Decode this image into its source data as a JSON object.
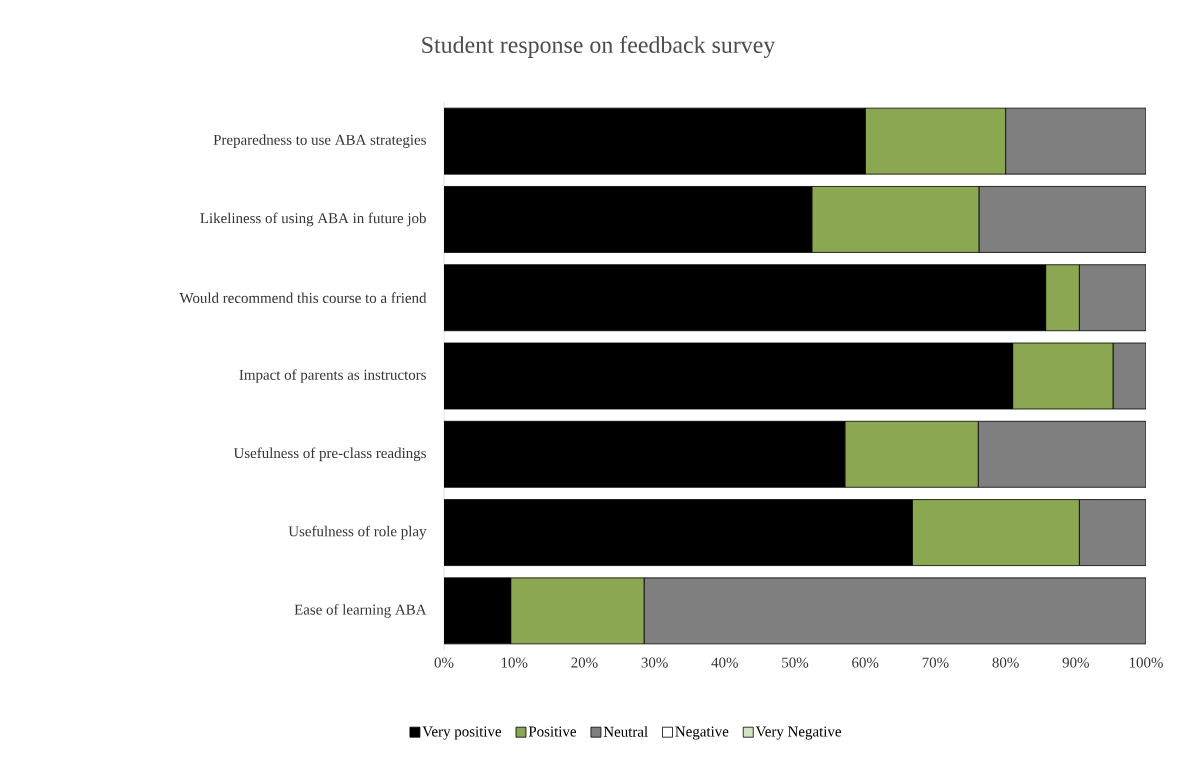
{
  "chart_data": {
    "type": "bar",
    "orientation": "horizontal",
    "stacked": true,
    "title": "Student response on feedback survey",
    "categories": [
      "Preparedness to use ABA strategies",
      "Likeliness of using ABA in future job",
      "Would recommend this course to a friend",
      "Impact of parents as instructors",
      "Usefulness of pre-class readings",
      "Usefulness of role play",
      "Ease of learning ABA"
    ],
    "series": [
      {
        "name": "Very positive",
        "color": "#000000",
        "values": [
          60.0,
          52.4,
          85.7,
          81.0,
          57.1,
          66.7,
          9.5
        ]
      },
      {
        "name": "Positive",
        "color": "#8ba752",
        "values": [
          20.0,
          23.8,
          4.8,
          14.3,
          19.0,
          23.8,
          19.0
        ]
      },
      {
        "name": "Neutral",
        "color": "#7f7f7f",
        "values": [
          20.0,
          23.8,
          9.5,
          4.7,
          23.9,
          9.5,
          71.5
        ]
      },
      {
        "name": "Negative",
        "color": "#ffffff",
        "values": [
          0,
          0,
          0,
          0,
          0,
          0,
          0
        ]
      },
      {
        "name": "Very Negative",
        "color": "#d3e4c2",
        "values": [
          0,
          0,
          0,
          0,
          0,
          0,
          0
        ]
      }
    ],
    "xlim": [
      0,
      100
    ],
    "xticks": [
      {
        "value": 0,
        "label": "0%"
      },
      {
        "value": 10,
        "label": "10%"
      },
      {
        "value": 20,
        "label": "20%"
      },
      {
        "value": 30,
        "label": "30%"
      },
      {
        "value": 40,
        "label": "40%"
      },
      {
        "value": 50,
        "label": "50%"
      },
      {
        "value": 60,
        "label": "60%"
      },
      {
        "value": 70,
        "label": "70%"
      },
      {
        "value": 80,
        "label": "80%"
      },
      {
        "value": 90,
        "label": "90%"
      },
      {
        "value": 100,
        "label": "100%"
      }
    ],
    "grid": false,
    "legend": "bottom"
  }
}
